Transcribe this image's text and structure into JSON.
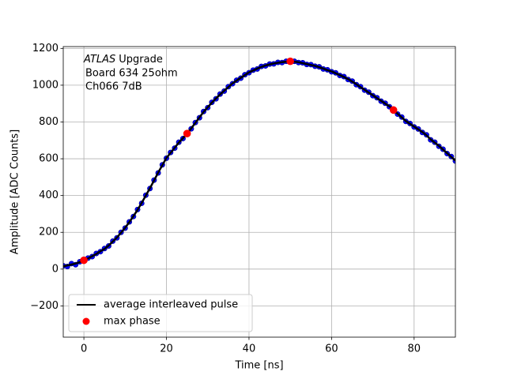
{
  "chart_data": {
    "type": "line",
    "xlabel": "Time [ns]",
    "ylabel": "Amplitude [ADC Counts]",
    "annotation": {
      "italic": "ATLAS",
      "text": "Upgrade",
      "lines": [
        "Board 634 25ohm",
        "Ch066 7dB"
      ]
    },
    "x": [
      -5,
      -4,
      -3,
      -2,
      -1,
      0,
      1,
      2,
      3,
      4,
      5,
      6,
      7,
      8,
      9,
      10,
      11,
      12,
      13,
      14,
      15,
      16,
      17,
      18,
      19,
      20,
      21,
      22,
      23,
      24,
      25,
      26,
      27,
      28,
      29,
      30,
      31,
      32,
      33,
      34,
      35,
      36,
      37,
      38,
      39,
      40,
      41,
      42,
      43,
      44,
      45,
      46,
      47,
      48,
      49,
      50,
      51,
      52,
      53,
      54,
      55,
      56,
      57,
      58,
      59,
      60,
      61,
      62,
      63,
      64,
      65,
      66,
      67,
      68,
      69,
      70,
      71,
      72,
      73,
      74,
      75,
      76,
      77,
      78,
      79,
      80,
      81,
      82,
      83,
      84,
      85,
      86,
      87,
      88,
      89,
      90
    ],
    "series": [
      {
        "name": "average interleaved pulse",
        "color": "#000000",
        "style": "line",
        "values": [
          15,
          20,
          25,
          30,
          38,
          48,
          58,
          70,
          82,
          97,
          110,
          128,
          150,
          172,
          198,
          225,
          255,
          288,
          322,
          360,
          400,
          440,
          482,
          525,
          565,
          605,
          632,
          660,
          688,
          712,
          737,
          765,
          795,
          825,
          855,
          880,
          905,
          928,
          950,
          970,
          990,
          1010,
          1025,
          1040,
          1055,
          1070,
          1080,
          1090,
          1100,
          1107,
          1113,
          1118,
          1122,
          1125,
          1128,
          1130,
          1128,
          1125,
          1120,
          1115,
          1110,
          1105,
          1098,
          1090,
          1082,
          1075,
          1065,
          1055,
          1045,
          1033,
          1020,
          1005,
          990,
          975,
          960,
          945,
          930,
          915,
          900,
          885,
          865,
          845,
          825,
          805,
          790,
          775,
          760,
          745,
          728,
          705,
          688,
          670,
          650,
          630,
          610,
          590
        ]
      },
      {
        "color": "#0000ff",
        "style": "dots",
        "values": [
          18,
          14,
          30,
          24,
          40,
          46,
          60,
          68,
          85,
          95,
          112,
          126,
          152,
          170,
          200,
          223,
          257,
          286,
          324,
          358,
          402,
          438,
          484,
          523,
          567,
          603,
          634,
          658,
          690,
          710,
          739,
          763,
          797,
          823,
          857,
          878,
          907,
          926,
          952,
          968,
          992,
          1008,
          1027,
          1038,
          1057,
          1068,
          1082,
          1088,
          1102,
          1105,
          1115,
          1116,
          1124,
          1123,
          1130,
          1128,
          1130,
          1123,
          1122,
          1113,
          1112,
          1103,
          1100,
          1088,
          1084,
          1073,
          1067,
          1053,
          1047,
          1031,
          1022,
          1003,
          992,
          973,
          962,
          943,
          932,
          913,
          902,
          883,
          867,
          843,
          827,
          803,
          792,
          773,
          762,
          743,
          730,
          703,
          690,
          668,
          652,
          628,
          612,
          588
        ]
      },
      {
        "name": "max phase",
        "color": "#ff0000",
        "style": "points",
        "x": [
          0,
          25,
          50,
          75
        ],
        "values": [
          48,
          737,
          1130,
          865
        ]
      }
    ],
    "xlim": [
      -5,
      90
    ],
    "ylim": [
      -370,
      1210
    ],
    "xticks": [
      0,
      20,
      40,
      60,
      80
    ],
    "yticks": [
      {
        "value": -200,
        "label": "−200"
      },
      0,
      200,
      400,
      600,
      800,
      1000,
      1200
    ],
    "grid": true,
    "legend": "lower left"
  }
}
